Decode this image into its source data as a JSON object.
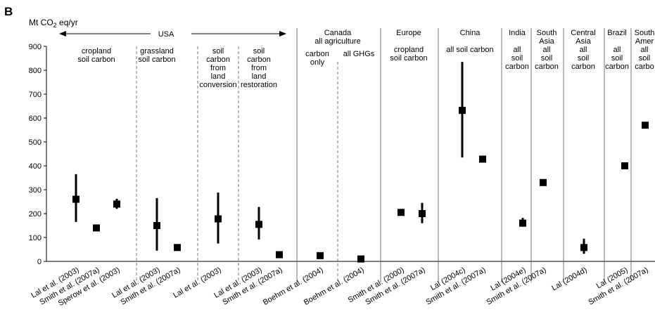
{
  "chart_data": {
    "type": "scatter",
    "panel_letter": "B",
    "y_unit_label": "Mt CO2 eq/yr",
    "ylim": [
      0,
      900
    ],
    "yticks": [
      "0",
      "100",
      "200",
      "300",
      "400",
      "500",
      "600",
      "700",
      "800",
      "900"
    ],
    "grid": false,
    "legend": "none",
    "usa_header": "USA",
    "canada_header": [
      "Canada",
      "all agriculture"
    ],
    "groups": [
      {
        "label": [
          "cropland",
          "soil carbon"
        ]
      },
      {
        "label": [
          "grassland",
          "soil carbon"
        ]
      },
      {
        "label": [
          "soil",
          "carbon",
          "from",
          "land",
          "conversion"
        ]
      },
      {
        "label": [
          "soil",
          "carbon",
          "from",
          "land",
          "restoration"
        ]
      },
      {
        "label": [
          "carbon",
          "only"
        ]
      },
      {
        "label": [
          "all GHGs"
        ]
      },
      {
        "label": [
          "Europe",
          "",
          "cropland",
          "soil carbon"
        ]
      },
      {
        "label": [
          "China",
          "",
          "all soil carbon"
        ]
      },
      {
        "label": [
          "India",
          "",
          "all",
          "soil",
          "carbon"
        ]
      },
      {
        "label": [
          "South",
          "Asia",
          "all",
          "soil",
          "carbon"
        ]
      },
      {
        "label": [
          "Central",
          "Asia",
          "all",
          "soil",
          "carbon"
        ]
      },
      {
        "label": [
          "Brazil",
          "",
          "all",
          "soil",
          "carbon"
        ]
      },
      {
        "label": [
          "South",
          "Amer",
          "all",
          "soil",
          "carbo"
        ]
      }
    ],
    "points": [
      {
        "study": "Lal et al. (2003)",
        "value": 260,
        "low": 165,
        "high": 365
      },
      {
        "study": "Smith et al. (2007a)",
        "value": 140
      },
      {
        "study": "Sperow et al. (2003)",
        "value": 240,
        "low": 220,
        "high": 262
      },
      {
        "study": "Lal et al. (2003)",
        "value": 150,
        "low": 45,
        "high": 265
      },
      {
        "study": "Smith et al. (2007a)",
        "value": 58
      },
      {
        "study": "Lal et al. (2003)",
        "value": 178,
        "low": 75,
        "high": 288
      },
      {
        "study": "Lal et al. (2003)",
        "value": 155,
        "low": 92,
        "high": 228
      },
      {
        "study": "Smith et al. (2007a)",
        "value": 28
      },
      {
        "study": "Boehm et al. (2004)",
        "value": 24
      },
      {
        "study": "Boehm et al. (2004)",
        "value": 10
      },
      {
        "study": "Smith et al. (2000)",
        "value": 205
      },
      {
        "study": "Smith et al. (2007a)",
        "value": 200,
        "low": 160,
        "high": 245
      },
      {
        "study": "Lal (2004c)",
        "value": 632,
        "low": 435,
        "high": 835
      },
      {
        "study": "Smith et al. (2007a)",
        "value": 428
      },
      {
        "study": "Lal (2004e)",
        "value": 160,
        "low": 145,
        "high": 182
      },
      {
        "study": "Smith et al. (2007a)",
        "value": 330
      },
      {
        "study": "Lal (2004d)",
        "value": 58,
        "low": 32,
        "high": 95
      },
      {
        "study": "Lal (2005)",
        "value": 400
      },
      {
        "study": "Smith et al. (2007a)",
        "value": 570
      }
    ]
  }
}
